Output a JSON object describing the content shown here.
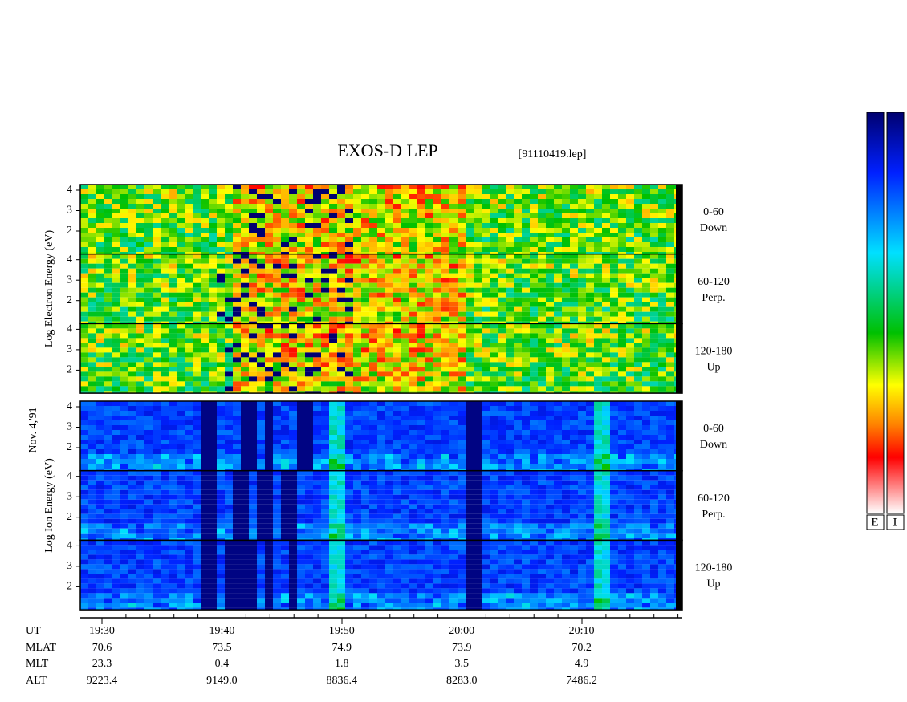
{
  "title": "EXOS-D LEP",
  "file": "[91110419.lep]",
  "date_label": "Nov. 4,'91",
  "panel_yticks": [
    "4",
    "3",
    "2"
  ],
  "groups": [
    {
      "axis_label": "Log  Electron  Energy  (eV)"
    },
    {
      "axis_label": "Log  Ion  Energy  (eV)"
    }
  ],
  "panel_labels": [
    [
      "0-60",
      "Down"
    ],
    [
      "60-120",
      "Perp."
    ],
    [
      "120-180",
      "Up"
    ]
  ],
  "ephemeris": [
    {
      "name": "UT",
      "values": [
        "19:30",
        "19:40",
        "19:50",
        "20:00",
        "20:10"
      ]
    },
    {
      "name": "MLAT",
      "values": [
        "70.6",
        "73.5",
        "74.9",
        "73.9",
        "70.2"
      ]
    },
    {
      "name": "MLT",
      "values": [
        "23.3",
        "0.4",
        "1.8",
        "3.5",
        "4.9"
      ]
    },
    {
      "name": "ALT",
      "values": [
        "9223.4",
        "9149.0",
        "8836.4",
        "8283.0",
        "7486.2"
      ]
    }
  ],
  "colorbar_labels": [
    "E",
    "I"
  ]
}
